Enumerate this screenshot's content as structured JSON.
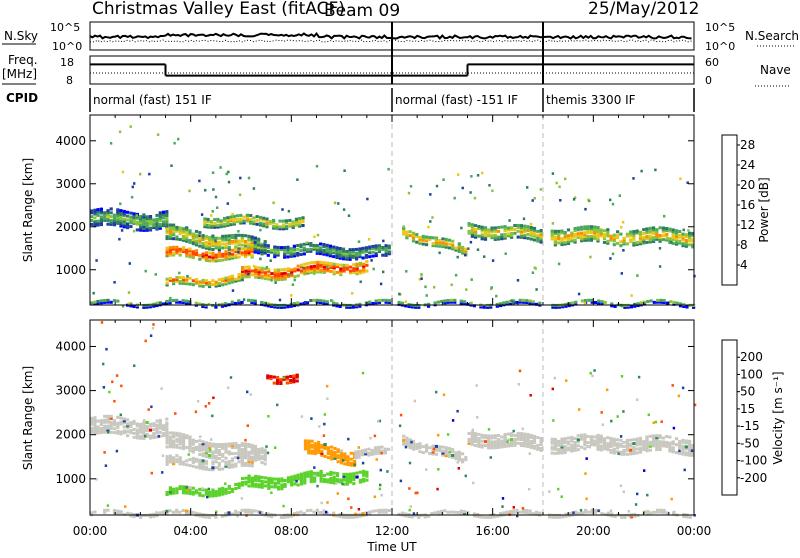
{
  "header": {
    "title": "Christmas Valley East (fitACF)",
    "beam": "Beam 09",
    "date": "25/May/2012"
  },
  "top_panels": {
    "nsky_label": "N.Sky",
    "nsky_ticks": [
      "10^5",
      "10^0"
    ],
    "nsearch_label": "N.Search",
    "nsearch_ticks": [
      "10^5",
      "10^0"
    ],
    "freq_label_1": "Freq.",
    "freq_label_2": "[MHz]",
    "freq_ticks": [
      "18",
      "8"
    ],
    "nave_label": "Nave",
    "nave_ticks": [
      "60",
      "0"
    ],
    "cpid_label": "CPID",
    "cpid_segments": [
      {
        "start_hour": 0,
        "end_hour": 12,
        "label": "normal (fast) 151 IF"
      },
      {
        "start_hour": 12,
        "end_hour": 18,
        "label": "normal (fast) -151 IF"
      },
      {
        "start_hour": 18,
        "end_hour": 24,
        "label": "themis 3300 IF"
      }
    ],
    "freq_segments": [
      {
        "start_hour": 0,
        "end_hour": 3,
        "freq_mhz": 15.0
      },
      {
        "start_hour": 3,
        "end_hour": 12,
        "freq_mhz": 11.0
      },
      {
        "start_hour": 12,
        "end_hour": 15,
        "freq_mhz": 11.0
      },
      {
        "start_hour": 15,
        "end_hour": 18,
        "freq_mhz": 15.0
      },
      {
        "start_hour": 18,
        "end_hour": 24,
        "freq_mhz": 15.0
      }
    ],
    "mode_breaks_hours": [
      12,
      18
    ]
  },
  "chart_data": [
    {
      "type": "heatmap",
      "panel": "power",
      "ylabel": "Slant Range [km]",
      "xlabel": "",
      "x_ticks": [
        "00:00",
        "04:00",
        "08:00",
        "12:00",
        "16:00",
        "20:00",
        "00:00"
      ],
      "y_ticks": [
        1000,
        2000,
        3000,
        4000
      ],
      "xlim_hours": [
        0,
        24
      ],
      "ylim_km": [
        180,
        4600
      ],
      "colorbar_label": "Power [dB]",
      "colorbar_ticks": [
        4,
        8,
        12,
        16,
        20,
        24,
        28
      ],
      "colorbar_range": [
        0,
        30
      ],
      "colors": [
        "#0000ff",
        "#1f3fa0",
        "#2e7d5f",
        "#4ca85a",
        "#8bc43c",
        "#e8c81a",
        "#ff8c00",
        "#ff4500",
        "#e00000"
      ],
      "bands": [
        {
          "t0": 0.0,
          "t1": 3.0,
          "r_start": 2200,
          "r_end": 2150,
          "width": 380,
          "level": 15
        },
        {
          "t0": 3.0,
          "t1": 7.0,
          "r_start": 1850,
          "r_end": 1500,
          "width": 320,
          "level": 20
        },
        {
          "t0": 3.0,
          "t1": 6.5,
          "r_start": 1400,
          "r_end": 1350,
          "width": 220,
          "level": 27
        },
        {
          "t0": 6.5,
          "t1": 12.0,
          "r_start": 1500,
          "r_end": 1400,
          "width": 260,
          "level": 14
        },
        {
          "t0": 3.0,
          "t1": 6.0,
          "r_start": 700,
          "r_end": 800,
          "width": 180,
          "level": 23
        },
        {
          "t0": 6.0,
          "t1": 11.0,
          "r_start": 900,
          "r_end": 1100,
          "width": 260,
          "level": 27
        },
        {
          "t0": 4.5,
          "t1": 8.5,
          "r_start": 2150,
          "r_end": 2100,
          "width": 200,
          "level": 20
        },
        {
          "t0": 12.4,
          "t1": 15.0,
          "r_start": 1900,
          "r_end": 1400,
          "width": 200,
          "level": 22
        },
        {
          "t0": 15.0,
          "t1": 18.0,
          "r_start": 1950,
          "r_end": 1800,
          "width": 300,
          "level": 20
        },
        {
          "t0": 18.3,
          "t1": 24.0,
          "r_start": 1800,
          "r_end": 1750,
          "width": 320,
          "level": 21
        },
        {
          "t0": 0.0,
          "t1": 24.0,
          "r_start": 230,
          "r_end": 230,
          "width": 90,
          "level": 12
        }
      ]
    },
    {
      "type": "heatmap",
      "panel": "velocity",
      "ylabel": "Slant Range [km]",
      "xlabel": "Time UT",
      "x_ticks": [
        "00:00",
        "04:00",
        "08:00",
        "12:00",
        "16:00",
        "20:00",
        "00:00"
      ],
      "y_ticks": [
        1000,
        2000,
        3000,
        4000
      ],
      "xlim_hours": [
        0,
        24
      ],
      "ylim_km": [
        180,
        4600
      ],
      "colorbar_label": "Velocity [m s⁻¹]",
      "colorbar_ticks": [
        "200",
        "100",
        "50",
        "15",
        "-15",
        "-50",
        "-100",
        "-200"
      ],
      "colorbar_range": [
        -250,
        250
      ],
      "colors": [
        "#e00000",
        "#ff5000",
        "#ff9a00",
        "#c8c8c0",
        "#c8c8c0",
        "#5ad22a",
        "#2e8b4f",
        "#1f3fa0",
        "#0000c8"
      ],
      "bands": [
        {
          "t0": 0.0,
          "t1": 3.0,
          "r_start": 2200,
          "r_end": 2150,
          "width": 380,
          "level": 0
        },
        {
          "t0": 3.0,
          "t1": 7.0,
          "r_start": 1850,
          "r_end": 1500,
          "width": 320,
          "level": 0
        },
        {
          "t0": 3.0,
          "t1": 6.5,
          "r_start": 1400,
          "r_end": 1350,
          "width": 220,
          "level": 5
        },
        {
          "t0": 3.0,
          "t1": 6.0,
          "r_start": 700,
          "r_end": 800,
          "width": 180,
          "level": 70
        },
        {
          "t0": 6.0,
          "t1": 11.0,
          "r_start": 900,
          "r_end": 1100,
          "width": 260,
          "level": 60
        },
        {
          "t0": 7.0,
          "t1": 8.3,
          "r_start": 3300,
          "r_end": 3300,
          "width": 160,
          "level": -200
        },
        {
          "t0": 8.5,
          "t1": 10.5,
          "r_start": 1700,
          "r_end": 1500,
          "width": 300,
          "level": -120
        },
        {
          "t0": 10.5,
          "t1": 12.0,
          "r_start": 1600,
          "r_end": 1600,
          "width": 150,
          "level": -60
        },
        {
          "t0": 12.4,
          "t1": 15.0,
          "r_start": 1900,
          "r_end": 1400,
          "width": 200,
          "level": 0
        },
        {
          "t0": 15.0,
          "t1": 18.0,
          "r_start": 1950,
          "r_end": 1800,
          "width": 300,
          "level": 0
        },
        {
          "t0": 18.3,
          "t1": 24.0,
          "r_start": 1800,
          "r_end": 1750,
          "width": 320,
          "level": 0
        },
        {
          "t0": 0.0,
          "t1": 24.0,
          "r_start": 230,
          "r_end": 230,
          "width": 90,
          "level": -40
        }
      ]
    }
  ]
}
